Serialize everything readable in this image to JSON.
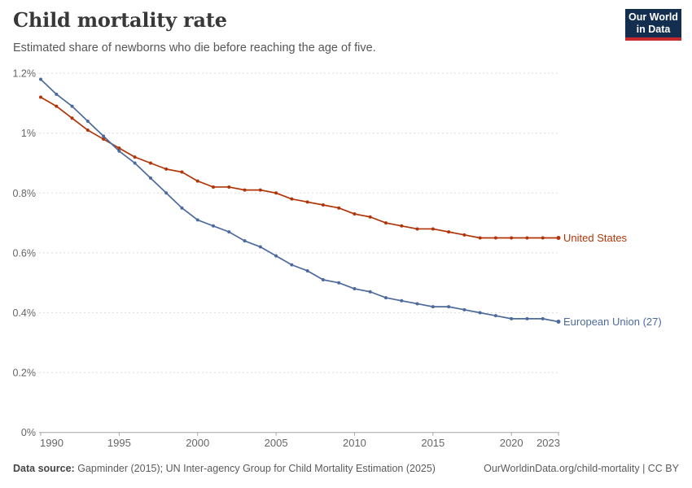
{
  "header": {
    "title": "Child mortality rate",
    "subtitle": "Estimated share of newborns who die before reaching the age of five.",
    "logo": {
      "line1": "Our World",
      "line2": "in Data"
    }
  },
  "footer": {
    "source_label": "Data source:",
    "source_text": " Gapminder (2015); UN Inter-agency Group for Child Mortality Estimation (2025)",
    "link_text": "OurWorldinData.org/child-mortality | CC BY"
  },
  "colors": {
    "gridline": "#dcdcdc",
    "axis": "#a3a3a3",
    "tick_label": "#666666",
    "logo_bg": "#132E4F",
    "logo_stripe": "#C5292E",
    "us_red": "#B13507",
    "eu_blue": "#4C6A9C"
  },
  "chart_data": {
    "type": "line",
    "title": "Child mortality rate",
    "subtitle": "Estimated share of newborns who die before reaching the age of five.",
    "xlabel": "",
    "ylabel": "",
    "grid": "horizontal-dashed",
    "legend_position": "labels-at-line-ends",
    "ylim": [
      0,
      1.2
    ],
    "xlim": [
      1990,
      2023
    ],
    "x": [
      1990,
      1991,
      1992,
      1993,
      1994,
      1995,
      1996,
      1997,
      1998,
      1999,
      2000,
      2001,
      2002,
      2003,
      2004,
      2005,
      2006,
      2007,
      2008,
      2009,
      2010,
      2011,
      2012,
      2013,
      2014,
      2015,
      2016,
      2017,
      2018,
      2019,
      2020,
      2021,
      2022,
      2023
    ],
    "xticks": [
      1990,
      1995,
      2000,
      2005,
      2010,
      2015,
      2020,
      2023
    ],
    "yticks": [
      {
        "value": 0,
        "label": "0%"
      },
      {
        "value": 0.2,
        "label": "0.2%"
      },
      {
        "value": 0.4,
        "label": "0.4%"
      },
      {
        "value": 0.6,
        "label": "0.6%"
      },
      {
        "value": 0.8,
        "label": "0.8%"
      },
      {
        "value": 1,
        "label": "1%"
      },
      {
        "value": 1.2,
        "label": "1.2%"
      }
    ],
    "unit": "%",
    "series": [
      {
        "name": "United States",
        "color": "#B13507",
        "values": [
          1.12,
          1.09,
          1.05,
          1.01,
          0.98,
          0.95,
          0.92,
          0.9,
          0.88,
          0.87,
          0.84,
          0.82,
          0.82,
          0.81,
          0.81,
          0.8,
          0.78,
          0.77,
          0.76,
          0.75,
          0.73,
          0.72,
          0.7,
          0.69,
          0.68,
          0.68,
          0.67,
          0.66,
          0.65,
          0.65,
          0.65,
          0.65,
          0.65,
          0.65
        ]
      },
      {
        "name": "European Union (27)",
        "color": "#4C6A9C",
        "values": [
          1.18,
          1.13,
          1.09,
          1.04,
          0.99,
          0.94,
          0.9,
          0.85,
          0.8,
          0.75,
          0.71,
          0.69,
          0.67,
          0.64,
          0.62,
          0.59,
          0.56,
          0.54,
          0.51,
          0.5,
          0.48,
          0.47,
          0.45,
          0.44,
          0.43,
          0.42,
          0.42,
          0.41,
          0.4,
          0.39,
          0.38,
          0.38,
          0.38,
          0.37
        ]
      }
    ]
  }
}
